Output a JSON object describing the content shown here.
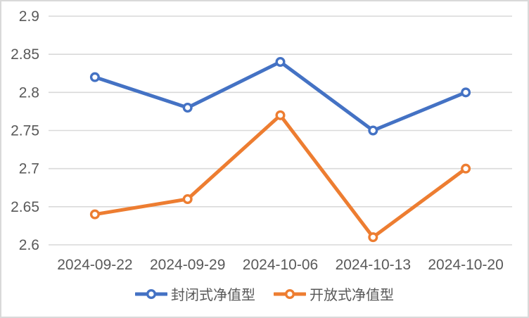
{
  "chart_data": {
    "type": "line",
    "categories": [
      "2024-09-22",
      "2024-09-29",
      "2024-10-06",
      "2024-10-13",
      "2024-10-20"
    ],
    "series": [
      {
        "name": "封闭式净值型",
        "color": "#4472C4",
        "values": [
          2.82,
          2.78,
          2.84,
          2.75,
          2.8
        ]
      },
      {
        "name": "开放式净值型",
        "color": "#ED7D31",
        "values": [
          2.64,
          2.66,
          2.77,
          2.61,
          2.7
        ]
      }
    ],
    "title": "",
    "xlabel": "",
    "ylabel": "",
    "ylim": [
      2.6,
      2.9
    ],
    "ytick_step": 0.05,
    "yticks": [
      "2.9",
      "2.85",
      "2.8",
      "2.75",
      "2.7",
      "2.65",
      "2.6"
    ],
    "grid": "horizontal",
    "legend_position": "bottom",
    "marker": "open-circle"
  },
  "colors": {
    "grid": "#D9D9D9",
    "border": "#D9D9D9",
    "text": "#595959",
    "background": "#FFFFFF"
  }
}
